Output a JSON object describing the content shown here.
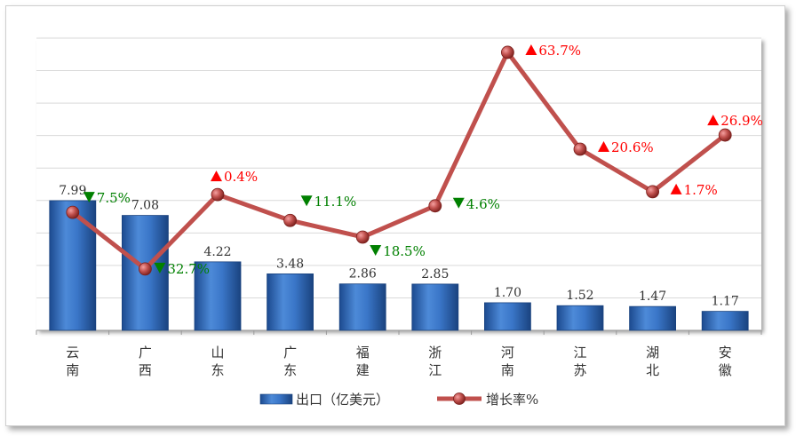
{
  "chart_data": {
    "type": "bar+line",
    "categories": [
      "云南",
      "广西",
      "山东",
      "广东",
      "福建",
      "浙江",
      "河南",
      "江苏",
      "湖北",
      "安徽"
    ],
    "series": [
      {
        "name": "出口（亿美元）",
        "type": "bar",
        "values": [
          7.99,
          7.08,
          4.22,
          3.48,
          2.86,
          2.85,
          1.7,
          1.52,
          1.47,
          1.17
        ],
        "labels": [
          "7.99",
          "7.08",
          "4.22",
          "3.48",
          "2.86",
          "2.85",
          "1.70",
          "1.52",
          "1.47",
          "1.17"
        ]
      },
      {
        "name": "增长率%",
        "type": "line",
        "values": [
          -7.5,
          -32.7,
          0.4,
          -11.1,
          -18.5,
          -4.6,
          63.7,
          20.6,
          1.7,
          26.9
        ],
        "labels": [
          "7.5%",
          "32.7%",
          "0.4%",
          "11.1%",
          "18.5%",
          "4.6%",
          "63.7%",
          "20.6%",
          "1.7%",
          "26.9%"
        ]
      }
    ],
    "bar_axis_range": [
      0,
      18
    ],
    "line_axis_range": [
      -60,
      70
    ],
    "grid": true,
    "legend": "bottom",
    "colors": {
      "bar": "#2e66b8",
      "line": "#c0504d",
      "up": "#ff0000",
      "down": "#008000"
    }
  }
}
